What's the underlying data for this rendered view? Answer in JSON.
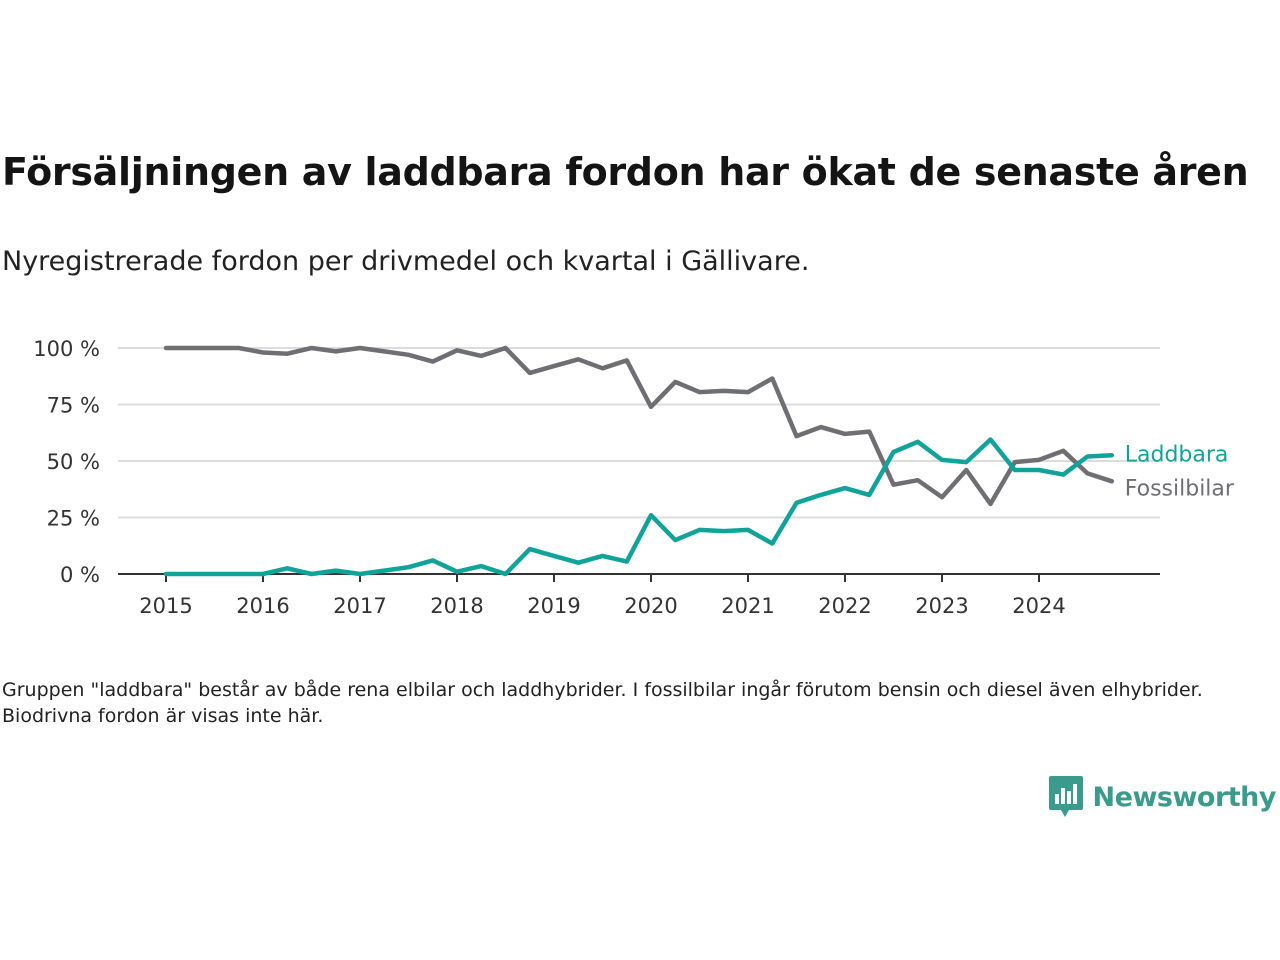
{
  "title": "Försäljningen av laddbara fordon har ökat de senaste åren",
  "subtitle": "Nyregistrerade fordon per drivmedel och kvartal i Gällivare.",
  "footnote": "Gruppen \"laddbara\" består av både rena elbilar och laddhybrider. I fossilbilar ingår förutom bensin och diesel även elhybrider. Biodrivna fordon är visas inte här.",
  "brand": {
    "name": "Newsworthy",
    "icon": "newsworthy-logo-icon",
    "color": "#3a9b8c"
  },
  "chart_data": {
    "type": "line",
    "title": "Försäljningen av laddbara fordon har ökat de senaste åren",
    "subtitle": "Nyregistrerade fordon per drivmedel och kvartal i Gällivare.",
    "xlabel": "",
    "ylabel": "",
    "ylim": [
      0,
      100
    ],
    "xlim": [
      2015,
      2025.5
    ],
    "y_ticks": [
      0,
      25,
      50,
      75,
      100
    ],
    "y_tick_labels": [
      "0 %",
      "25 %",
      "50 %",
      "75 %",
      "100 %"
    ],
    "x_ticks": [
      2015,
      2016,
      2017,
      2018,
      2019,
      2020,
      2021,
      2022,
      2023,
      2024
    ],
    "x_tick_labels": [
      "2015",
      "2016",
      "2017",
      "2018",
      "2019",
      "2020",
      "2021",
      "2022",
      "2023",
      "2024"
    ],
    "grid": true,
    "legend": "direct labels at line ends (right)",
    "x": [
      2015,
      2015.25,
      2015.5,
      2015.75,
      2016,
      2016.25,
      2016.5,
      2016.75,
      2017,
      2017.25,
      2017.5,
      2017.75,
      2018,
      2018.25,
      2018.5,
      2018.75,
      2019,
      2019.25,
      2019.5,
      2019.75,
      2020,
      2020.25,
      2020.5,
      2020.75,
      2021,
      2021.25,
      2021.5,
      2021.75,
      2022,
      2022.25,
      2022.5,
      2022.75,
      2023,
      2023.25,
      2023.5,
      2023.75,
      2024,
      2024.25,
      2024.5,
      2024.75
    ],
    "series": [
      {
        "name": "Laddbara",
        "color": "#11a39a",
        "values": [
          0,
          0,
          0,
          0,
          0,
          2.5,
          0,
          1.5,
          0,
          1.5,
          3,
          6,
          1,
          3.5,
          0,
          11,
          8,
          5,
          8,
          5.5,
          26,
          15,
          19.5,
          19,
          19.5,
          13.5,
          31.5,
          35,
          38,
          35,
          54,
          58.5,
          50.5,
          49.5,
          59.5,
          46,
          46,
          44,
          52,
          52.5
        ]
      },
      {
        "name": "Fossilbilar",
        "color": "#6f6e73",
        "values": [
          100,
          100,
          100,
          100,
          98,
          97.5,
          100,
          98.5,
          100,
          98.5,
          97,
          94,
          99,
          96.5,
          100,
          89,
          92,
          95,
          91,
          94.5,
          74,
          85,
          80.5,
          81,
          80.5,
          86.5,
          61,
          65,
          62,
          63,
          39.5,
          41.5,
          34,
          46,
          31,
          49.5,
          50.5,
          54.5,
          44.5,
          41
        ]
      }
    ]
  }
}
